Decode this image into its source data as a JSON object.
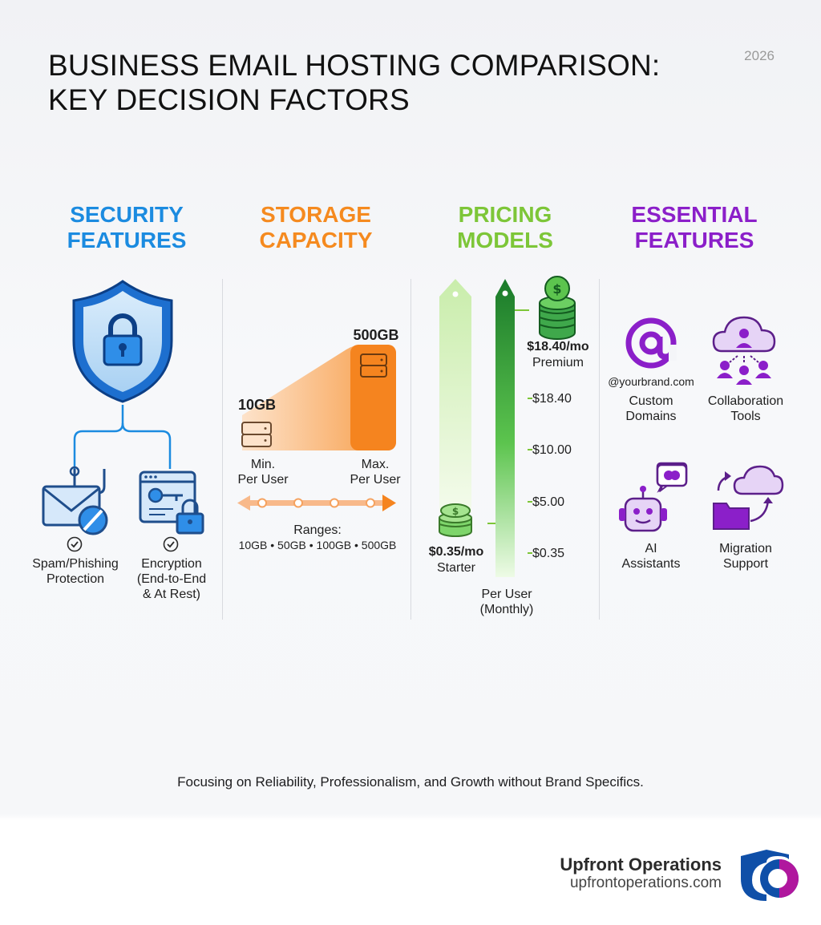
{
  "header": {
    "title_line1": "BUSINESS EMAIL HOSTING COMPARISON:",
    "title_line2": "KEY DECISION FACTORS",
    "year": "2026"
  },
  "columns": {
    "security": {
      "title_line1": "SECURITY",
      "title_line2": "FEATURES",
      "color": "#1b8be0",
      "items": [
        {
          "lines": [
            "Spam/Phishing",
            "Protection"
          ],
          "icon": "phishing-email-icon"
        },
        {
          "lines": [
            "Encryption",
            "(End-to-End",
            "& At Rest)"
          ],
          "icon": "encryption-key-lock-icon"
        }
      ]
    },
    "storage": {
      "title_line1": "STORAGE",
      "title_line2": "CAPACITY",
      "color": "#f58a1f",
      "min_value": "10GB",
      "max_value": "500GB",
      "min_label": [
        "Min.",
        "Per User"
      ],
      "max_label": [
        "Max.",
        "Per User"
      ],
      "ranges_title": "Ranges:",
      "ranges_values": "10GB • 50GB • 100GB • 500GB"
    },
    "pricing": {
      "title_line1": "PRICING",
      "title_line2": "MODELS",
      "color": "#7dc638",
      "premium_price": "$18.40/mo",
      "premium_label": "Premium",
      "starter_price": "$0.35/mo",
      "starter_label": "Starter",
      "ticks": [
        "$18.40",
        "$10.00",
        "$5.00",
        "$0.35"
      ],
      "axis_label": [
        "Per User",
        "(Monthly)"
      ]
    },
    "essential": {
      "title_line1": "ESSENTIAL",
      "title_line2": "FEATURES",
      "color": "#8b1fc9",
      "domain_example": "@yourbrand.com",
      "items": [
        {
          "lines": [
            "Custom",
            "Domains"
          ],
          "icon": "at-sign-icon"
        },
        {
          "lines": [
            "Collaboration",
            "Tools"
          ],
          "icon": "cloud-team-icon"
        },
        {
          "lines": [
            "AI",
            "Assistants"
          ],
          "icon": "robot-icon"
        },
        {
          "lines": [
            "Migration",
            "Support"
          ],
          "icon": "cloud-migration-icon"
        }
      ]
    }
  },
  "footer": {
    "note": "Focusing on Reliability, Professionalism, and Growth without Brand Specifics.",
    "brand_name": "Upfront Operations",
    "brand_url": "upfrontoperations.com"
  }
}
